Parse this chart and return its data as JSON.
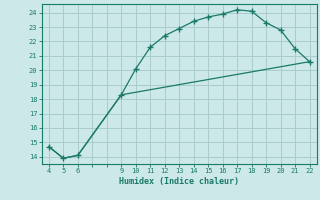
{
  "title": "",
  "xlabel": "Humidex (Indice chaleur)",
  "ylabel": "",
  "background_color": "#cce8e8",
  "grid_color": "#aacccc",
  "line_color": "#1a7a6a",
  "xlim": [
    3.5,
    22.5
  ],
  "ylim": [
    13.5,
    24.6
  ],
  "xticks": [
    4,
    5,
    6,
    9,
    10,
    11,
    12,
    13,
    14,
    15,
    16,
    17,
    18,
    19,
    20,
    21,
    22
  ],
  "yticks": [
    14,
    15,
    16,
    17,
    18,
    19,
    20,
    21,
    22,
    23,
    24
  ],
  "curve1_x": [
    4,
    5,
    6,
    9,
    10,
    11,
    12,
    13,
    14,
    15,
    16,
    17,
    18,
    19,
    20,
    21,
    22
  ],
  "curve1_y": [
    14.7,
    13.9,
    14.1,
    18.3,
    20.1,
    21.6,
    22.4,
    22.9,
    23.4,
    23.7,
    23.9,
    24.2,
    24.1,
    23.3,
    22.8,
    21.5,
    20.6
  ],
  "curve2_x": [
    4,
    5,
    6,
    9,
    22
  ],
  "curve2_y": [
    14.7,
    13.9,
    14.1,
    18.3,
    20.6
  ]
}
